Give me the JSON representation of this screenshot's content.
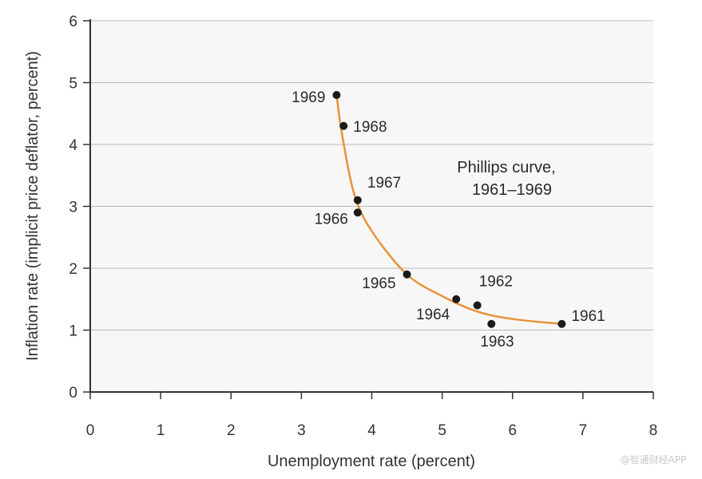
{
  "chart_data": {
    "type": "scatter",
    "xlabel": "Unemployment rate (percent)",
    "ylabel": "Inflation rate (implicit price deflator, percent)",
    "xlim": [
      0,
      8
    ],
    "ylim": [
      0,
      6
    ],
    "x_ticks": [
      "0",
      "1",
      "2",
      "3",
      "4",
      "5",
      "6",
      "7",
      "8"
    ],
    "y_ticks": [
      "0",
      "1",
      "2",
      "3",
      "4",
      "5",
      "6"
    ],
    "grid": "horizontal",
    "annotation": [
      "Phillips curve,",
      "1961–1969"
    ],
    "points": [
      {
        "label": "1961",
        "x": 6.7,
        "y": 1.1
      },
      {
        "label": "1962",
        "x": 5.5,
        "y": 1.4
      },
      {
        "label": "1963",
        "x": 5.7,
        "y": 1.1
      },
      {
        "label": "1964",
        "x": 5.2,
        "y": 1.5
      },
      {
        "label": "1965",
        "x": 4.5,
        "y": 1.9
      },
      {
        "label": "1966",
        "x": 3.8,
        "y": 2.9
      },
      {
        "label": "1967",
        "x": 3.8,
        "y": 3.1
      },
      {
        "label": "1968",
        "x": 3.6,
        "y": 4.3
      },
      {
        "label": "1969",
        "x": 3.5,
        "y": 4.8
      }
    ],
    "curve": {
      "name": "Phillips curve",
      "x": [
        3.5,
        3.58,
        3.75,
        4.0,
        4.5,
        5.0,
        5.5,
        6.0,
        6.7
      ],
      "y": [
        4.8,
        4.15,
        3.2,
        2.6,
        1.9,
        1.55,
        1.3,
        1.18,
        1.1
      ]
    },
    "colors": {
      "curve": "#e8923a",
      "points": "#1a1a1a",
      "grid": "#b8b8b8",
      "background": "#f7f7f7",
      "axis": "#333333"
    }
  },
  "watermark": "@智通财经APP"
}
